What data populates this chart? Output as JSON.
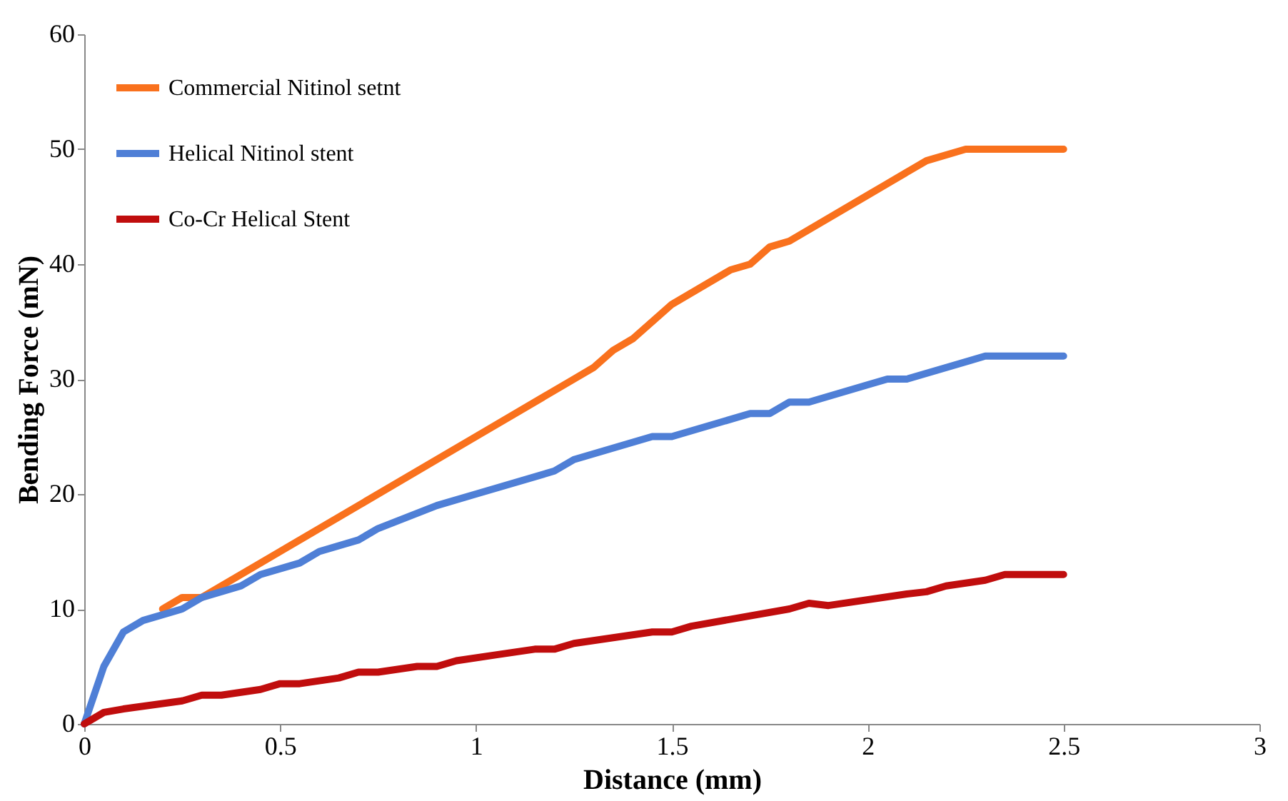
{
  "chart_data": {
    "type": "line",
    "xlabel": "Distance (mm)",
    "ylabel": "Bending Force (mN)",
    "xlim": [
      0,
      3
    ],
    "xticks": [
      0,
      0.5,
      1,
      1.5,
      2,
      2.5,
      3
    ],
    "ylim": [
      0,
      60
    ],
    "yticks": [
      0,
      10,
      20,
      30,
      40,
      50,
      60
    ],
    "grid": false,
    "legend": "top left",
    "marker": "none",
    "line_style": "solid",
    "series": [
      {
        "name": "Commercial Nitinol setnt",
        "color": "#f9711d",
        "x": [
          0.2,
          0.25,
          0.3,
          0.5,
          1,
          1.25,
          1.3,
          1.35,
          1.4,
          1.5,
          1.6,
          1.65,
          1.7,
          1.75,
          1.8,
          2,
          2.15,
          2.25,
          2.5
        ],
        "values": [
          10,
          11,
          11,
          15,
          25,
          30,
          31,
          32.5,
          33.5,
          36.5,
          38.5,
          39.5,
          40,
          41.5,
          42,
          46,
          49,
          50,
          50
        ]
      },
      {
        "name": "Helical Nitinol stent",
        "color": "#4f7fd6",
        "x": [
          0,
          0.05,
          0.1,
          0.15,
          0.25,
          0.3,
          0.4,
          0.45,
          0.55,
          0.6,
          0.7,
          0.75,
          0.9,
          1,
          1.2,
          1.25,
          1.45,
          1.5,
          1.7,
          1.75,
          1.8,
          1.85,
          2,
          2.05,
          2.1,
          2.3,
          2.5
        ],
        "values": [
          0,
          5,
          8,
          9,
          10,
          11,
          12,
          13,
          14,
          15,
          16,
          17,
          19,
          20,
          22,
          23,
          25,
          25,
          27,
          27,
          28,
          28,
          29.5,
          30,
          30,
          32,
          32
        ]
      },
      {
        "name": "Co-Cr Helical Stent",
        "color": "#c00d0d",
        "x": [
          0,
          0.05,
          0.1,
          0.25,
          0.3,
          0.35,
          0.45,
          0.5,
          0.55,
          0.65,
          0.7,
          0.75,
          0.85,
          0.9,
          0.95,
          1.05,
          1.15,
          1.2,
          1.25,
          1.45,
          1.5,
          1.55,
          1.8,
          1.85,
          1.9,
          2.1,
          2.15,
          2.2,
          2.3,
          2.35,
          2.5
        ],
        "values": [
          0,
          1,
          1.3,
          2,
          2.5,
          2.5,
          3,
          3.5,
          3.5,
          4,
          4.5,
          4.5,
          5,
          5,
          5.5,
          6,
          6.5,
          6.5,
          7,
          8,
          8,
          8.5,
          10,
          10.5,
          10.3,
          11.3,
          11.5,
          12,
          12.5,
          13,
          13
        ]
      }
    ]
  }
}
